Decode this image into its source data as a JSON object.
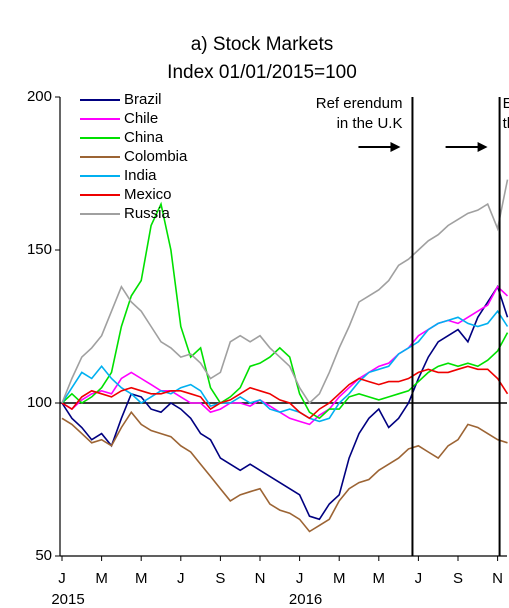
{
  "chart_data": {
    "type": "line",
    "title": "a) Stock Markets",
    "subtitle": "Index 01/01/2015=100",
    "categories": [
      "J",
      null,
      null,
      null,
      "M",
      null,
      null,
      null,
      "M",
      null,
      null,
      null,
      "J",
      null,
      null,
      null,
      "S",
      null,
      null,
      null,
      "N",
      null,
      null,
      null,
      "J",
      null,
      null,
      null,
      "M",
      null,
      null,
      null,
      "M",
      null,
      null,
      null,
      "J",
      null,
      null,
      null,
      "S",
      null,
      null,
      null,
      "N",
      null
    ],
    "year_labels": [
      {
        "category": 0,
        "label": "2015"
      },
      {
        "category": 24,
        "label": "2016"
      }
    ],
    "series": [
      {
        "name": "Brazil",
        "color": "#000080",
        "values": [
          100,
          95,
          92,
          88,
          90,
          86,
          95,
          103,
          102,
          98,
          97,
          100,
          98,
          95,
          90,
          88,
          82,
          80,
          78,
          80,
          78,
          76,
          74,
          72,
          70,
          63,
          62,
          67,
          70,
          82,
          90,
          95,
          98,
          92,
          95,
          100,
          108,
          115,
          120,
          122,
          124,
          120,
          128,
          133,
          138,
          128
        ]
      },
      {
        "name": "Chile",
        "color": "#ff00ff",
        "values": [
          100,
          98,
          101,
          103,
          104,
          103,
          108,
          110,
          108,
          106,
          104,
          104,
          102,
          100,
          100,
          97,
          98,
          100,
          100,
          99,
          101,
          99,
          97,
          95,
          94,
          93,
          96,
          98,
          102,
          105,
          108,
          110,
          112,
          113,
          116,
          118,
          122,
          124,
          126,
          127,
          126,
          128,
          130,
          132,
          138,
          135
        ]
      },
      {
        "name": "China",
        "color": "#00e000",
        "values": [
          100,
          103,
          100,
          102,
          105,
          110,
          125,
          135,
          140,
          158,
          165,
          150,
          125,
          115,
          118,
          105,
          100,
          102,
          105,
          112,
          113,
          115,
          118,
          115,
          103,
          97,
          95,
          98,
          98,
          102,
          103,
          102,
          101,
          102,
          103,
          104,
          107,
          110,
          112,
          113,
          112,
          113,
          112,
          114,
          117,
          123
        ]
      },
      {
        "name": "Colombia",
        "color": "#9c6434",
        "values": [
          95,
          93,
          90,
          87,
          88,
          86,
          92,
          97,
          93,
          91,
          90,
          89,
          86,
          84,
          80,
          76,
          72,
          68,
          70,
          71,
          72,
          67,
          65,
          64,
          62,
          58,
          60,
          62,
          68,
          72,
          74,
          75,
          78,
          80,
          82,
          85,
          86,
          84,
          82,
          86,
          88,
          93,
          92,
          90,
          88,
          87
        ]
      },
      {
        "name": "India",
        "color": "#00b0f0",
        "values": [
          100,
          105,
          110,
          108,
          112,
          108,
          105,
          103,
          100,
          102,
          104,
          103,
          105,
          106,
          104,
          99,
          100,
          100,
          102,
          100,
          101,
          98,
          97,
          98,
          97,
          95,
          94,
          95,
          100,
          103,
          107,
          110,
          111,
          112,
          116,
          118,
          120,
          124,
          126,
          127,
          128,
          126,
          125,
          126,
          130,
          125
        ]
      },
      {
        "name": "Mexico",
        "color": "#ee0000",
        "values": [
          100,
          98,
          102,
          104,
          103,
          102,
          104,
          105,
          104,
          103,
          103,
          104,
          104,
          103,
          102,
          98,
          100,
          101,
          103,
          105,
          104,
          103,
          101,
          100,
          97,
          95,
          98,
          100,
          103,
          106,
          108,
          107,
          106,
          107,
          107,
          108,
          110,
          111,
          110,
          110,
          111,
          112,
          111,
          111,
          108,
          103
        ]
      },
      {
        "name": "Russia",
        "color": "#a0a0a0",
        "values": [
          100,
          108,
          115,
          118,
          122,
          130,
          138,
          133,
          130,
          125,
          120,
          118,
          115,
          116,
          113,
          108,
          110,
          120,
          122,
          120,
          122,
          118,
          115,
          112,
          105,
          100,
          103,
          110,
          118,
          125,
          133,
          135,
          137,
          140,
          145,
          147,
          150,
          153,
          155,
          158,
          160,
          162,
          163,
          165,
          157,
          173
        ]
      }
    ],
    "ylim": [
      50,
      200
    ],
    "yticks": [
      50,
      100,
      150,
      200
    ],
    "hline": 100,
    "annotations": [
      {
        "x": 35.4,
        "lines": [
          "Ref erendum",
          "in the U.K"
        ]
      },
      {
        "x": 44.2,
        "lines": [
          "Elections in",
          "the U.S."
        ]
      }
    ]
  }
}
